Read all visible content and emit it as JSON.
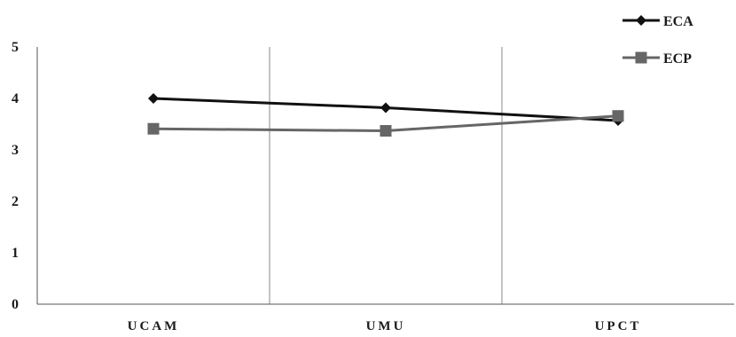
{
  "chart_data": {
    "type": "line",
    "categories": [
      "UCAM",
      "UMU",
      "UPCT"
    ],
    "series": [
      {
        "name": "ECA",
        "values": [
          4.0,
          3.82,
          3.57
        ],
        "color": "#111111",
        "marker": "diamond"
      },
      {
        "name": "ECP",
        "values": [
          3.41,
          3.37,
          3.66
        ],
        "color": "#666666",
        "marker": "square"
      }
    ],
    "yticks": [
      "0",
      "1",
      "2",
      "3",
      "4",
      "5"
    ],
    "ylim": [
      0,
      5
    ],
    "grid": "vertical category separators",
    "legend_position": "top-right"
  }
}
